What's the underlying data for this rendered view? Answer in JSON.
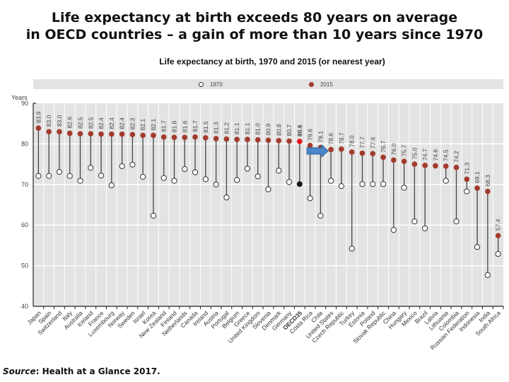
{
  "headline": {
    "line1": "Life expectancy at birth exceeds 80 years on average",
    "line2": "in OECD countries – a gain of more than 10 years since 1970"
  },
  "source": {
    "label": "Source",
    "text": ": Health at a Glance 2017."
  },
  "colors": {
    "value_2015": "#a33a2d",
    "oecd_2015": "#e8141b",
    "oecd_1970": "#111111",
    "panel_bg": "#e3e3e3",
    "highlight_arrow": "#4a86c8"
  },
  "annotation": {
    "type": "arrow",
    "icon": "right-arrow-icon",
    "points_to": "United States"
  },
  "chart_data": {
    "type": "dot-range",
    "title": "Life expectancy at birth, 1970 and 2015 (or nearest year)",
    "ylabel": "Years",
    "xlabel": "",
    "ylim": [
      40,
      90
    ],
    "yticks": [
      40,
      50,
      60,
      70,
      80,
      90
    ],
    "grid": true,
    "legend": {
      "placement": "top",
      "entries": [
        "1970",
        "2015"
      ]
    },
    "categories": [
      "Japan",
      "Spain",
      "Switzerland",
      "Italy",
      "Australia",
      "Iceland",
      "France",
      "Luxembourg",
      "Norway",
      "Sweden",
      "Israel",
      "Korea",
      "New Zealand",
      "Finland",
      "Netherlands",
      "Canada",
      "Ireland",
      "Austria",
      "Portugal",
      "Belgium",
      "Greece",
      "United Kingdom",
      "Slovenia",
      "Denmark",
      "Germany",
      "OECD35",
      "Costa Rica",
      "Chile",
      "United States",
      "Czech Republic",
      "Turkey",
      "Estonia",
      "Poland",
      "Slovak Republic",
      "China",
      "Hungary",
      "Mexico",
      "Brazil",
      "Latvia",
      "Lithuania",
      "Colombia",
      "Russian Federation",
      "Indonesia",
      "India",
      "South Africa"
    ],
    "highlight_category": "OECD35",
    "series": [
      {
        "name": "1970",
        "values": [
          72.1,
          72.1,
          73.1,
          72.1,
          70.9,
          74.1,
          72.2,
          69.8,
          74.5,
          74.9,
          71.9,
          62.3,
          71.6,
          70.9,
          73.8,
          73.0,
          71.3,
          70.0,
          66.8,
          71.1,
          73.9,
          72.0,
          68.8,
          73.4,
          70.6,
          70.1,
          66.6,
          62.3,
          70.9,
          69.6,
          54.2,
          70.1,
          70.1,
          70.1,
          58.8,
          69.2,
          60.9,
          59.2,
          null,
          70.9,
          60.9,
          68.3,
          54.6,
          47.7,
          52.9
        ]
      },
      {
        "name": "2015",
        "values": [
          83.9,
          83.0,
          83.0,
          82.6,
          82.5,
          82.5,
          82.4,
          82.4,
          82.4,
          82.3,
          82.1,
          82.1,
          81.7,
          81.6,
          81.6,
          81.7,
          81.5,
          81.3,
          81.2,
          81.1,
          81.1,
          81.0,
          80.9,
          80.8,
          80.7,
          80.6,
          79.6,
          79.1,
          78.6,
          78.7,
          78.0,
          77.7,
          77.6,
          76.7,
          76.0,
          75.7,
          75.0,
          74.7,
          74.6,
          74.5,
          74.2,
          71.3,
          69.1,
          68.3,
          57.4
        ],
        "labels": [
          "83.9",
          "83.0",
          "83.0",
          "82.6",
          "82.5",
          "82.5",
          "82.4",
          "82.4",
          "82.4",
          "82.3",
          "82.1",
          "82.1",
          "81.7",
          "81.6",
          "81.6",
          "81.7",
          "81.5",
          "81.3",
          "81.2",
          "81.1",
          "81.1",
          "81.0",
          "80.9",
          "80.8",
          "80.7",
          "80.6",
          "79.6",
          "79.1",
          "78.6",
          "78.7",
          "78.0",
          "77.7",
          "77.6",
          "76.7",
          "76.0",
          "75.7",
          "75.0",
          "74.7",
          "74.6",
          "74.5",
          "74.2",
          "71.3",
          "69.1",
          "68.3",
          "57.4"
        ]
      }
    ]
  }
}
